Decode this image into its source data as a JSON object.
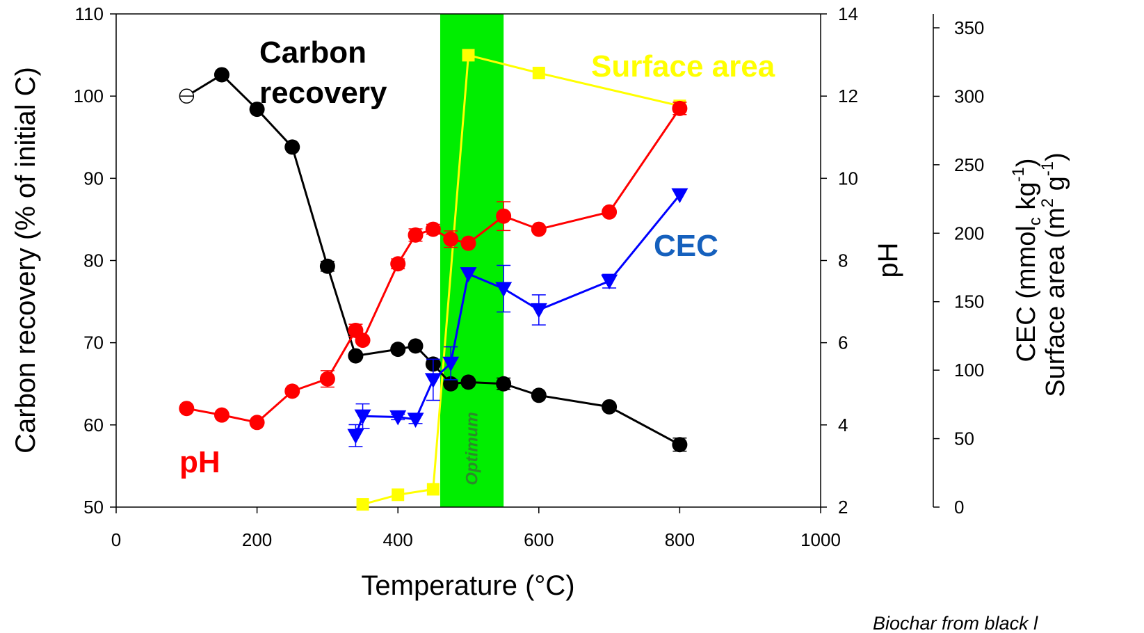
{
  "chart_data": {
    "type": "line",
    "axes": {
      "x": {
        "label": "Temperature (°C)",
        "range": [
          0,
          1000
        ],
        "ticks": [
          0,
          200,
          400,
          600,
          800,
          1000
        ]
      },
      "y_left": {
        "label": "Carbon recovery (% of initial C)",
        "range": [
          50,
          110
        ],
        "ticks": [
          50,
          60,
          70,
          80,
          90,
          100,
          110
        ]
      },
      "y_right_ph": {
        "label": "pH",
        "range": [
          2,
          14
        ],
        "ticks": [
          2,
          4,
          6,
          8,
          10,
          12,
          14
        ]
      },
      "y_right_cec": {
        "label_cec": "CEC (mmol",
        "label_cec_sub": "c",
        "label_cec_unit": " kg",
        "label_cec_sup": "-1",
        "label_cec_end": ")",
        "label_sa": "Surface area (m",
        "label_sa_sup": "2",
        "label_sa_unit": " g",
        "label_sa_sup2": "-1",
        "label_sa_end": ")",
        "range": [
          0,
          350
        ],
        "ticks": [
          0,
          50,
          100,
          150,
          200,
          250,
          300,
          350
        ]
      }
    },
    "optimum_band": {
      "label": "Optimum",
      "x_range": [
        460,
        550
      ],
      "color": "#00ee00",
      "label_color": "#2a8c2a"
    },
    "annotations": {
      "carbon_recovery": {
        "line1": "Carbon",
        "line2": "recovery",
        "color": "#000000"
      },
      "surface_area": {
        "text": "Surface area",
        "color": "#ffff00"
      },
      "cec": {
        "text": "CEC",
        "color": "#1560bd"
      },
      "ph": {
        "text": "pH",
        "color": "#ff0000"
      },
      "source": "Biochar from black l"
    },
    "series": [
      {
        "key": "carbon",
        "axis": "y_left",
        "color": "#000000",
        "marker": "circle",
        "points": [
          {
            "x": 100,
            "y": 100,
            "hollow": true
          },
          {
            "x": 150,
            "y": 102.6
          },
          {
            "x": 200,
            "y": 98.4
          },
          {
            "x": 250,
            "y": 93.8
          },
          {
            "x": 300,
            "y": 79.3,
            "err": 0.6
          },
          {
            "x": 340,
            "y": 68.4
          },
          {
            "x": 400,
            "y": 69.2
          },
          {
            "x": 425,
            "y": 69.6
          },
          {
            "x": 450,
            "y": 67.4
          },
          {
            "x": 475,
            "y": 65.0
          },
          {
            "x": 500,
            "y": 65.2
          },
          {
            "x": 550,
            "y": 65.0,
            "err": 0.7
          },
          {
            "x": 600,
            "y": 63.6
          },
          {
            "x": 700,
            "y": 62.2
          },
          {
            "x": 800,
            "y": 57.6,
            "err": 0.8
          }
        ]
      },
      {
        "key": "ph",
        "axis": "y_right_ph",
        "color": "#ff0000",
        "marker": "circle",
        "points": [
          {
            "x": 100,
            "y": 4.4
          },
          {
            "x": 150,
            "y": 4.24
          },
          {
            "x": 200,
            "y": 4.06
          },
          {
            "x": 250,
            "y": 4.82
          },
          {
            "x": 300,
            "y": 5.12,
            "err": 0.2
          },
          {
            "x": 340,
            "y": 6.3,
            "err": 0.15
          },
          {
            "x": 350,
            "y": 6.06
          },
          {
            "x": 400,
            "y": 7.92,
            "err": 0.12
          },
          {
            "x": 425,
            "y": 8.62,
            "err": 0.15
          },
          {
            "x": 450,
            "y": 8.76,
            "err": 0.12
          },
          {
            "x": 475,
            "y": 8.52,
            "err": 0.2
          },
          {
            "x": 500,
            "y": 8.42
          },
          {
            "x": 550,
            "y": 9.08,
            "err": 0.35
          },
          {
            "x": 600,
            "y": 8.76
          },
          {
            "x": 700,
            "y": 9.18
          },
          {
            "x": 800,
            "y": 11.7,
            "err": 0.15
          }
        ]
      },
      {
        "key": "cec",
        "axis": "y_right_cec",
        "color": "#0000ff",
        "marker": "triangle-down",
        "points": [
          {
            "x": 340,
            "y": 52.2,
            "err": 8
          },
          {
            "x": 350,
            "y": 66.4,
            "err": 9
          },
          {
            "x": 400,
            "y": 65.8,
            "err": 2
          },
          {
            "x": 425,
            "y": 64.0,
            "err": 3
          },
          {
            "x": 450,
            "y": 93.0,
            "err": 15
          },
          {
            "x": 475,
            "y": 105.0,
            "err": 12
          },
          {
            "x": 500,
            "y": 170.3
          },
          {
            "x": 550,
            "y": 159.5,
            "err": 17
          },
          {
            "x": 600,
            "y": 144.0,
            "err": 11
          },
          {
            "x": 700,
            "y": 165.0,
            "err": 5
          },
          {
            "x": 800,
            "y": 228.0
          }
        ]
      },
      {
        "key": "surface_area",
        "axis": "y_right_cec",
        "color": "#ffff00",
        "marker": "square",
        "points": [
          {
            "x": 350,
            "y": 2
          },
          {
            "x": 400,
            "y": 9
          },
          {
            "x": 450,
            "y": 13
          },
          {
            "x": 500,
            "y": 330
          },
          {
            "x": 600,
            "y": 317
          },
          {
            "x": 800,
            "y": 293
          }
        ]
      }
    ]
  }
}
